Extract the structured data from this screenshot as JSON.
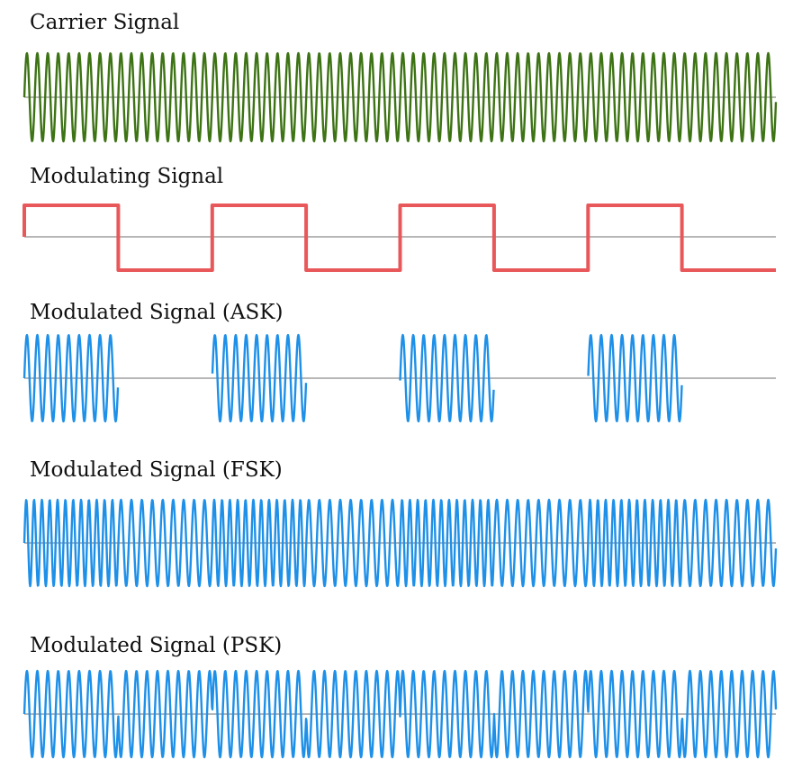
{
  "panels": [
    {
      "title": "Carrier Signal",
      "kind": "carrier",
      "color": "#3d7314"
    },
    {
      "title": "Modulating Signal",
      "kind": "square",
      "color": "#e8585a"
    },
    {
      "title": "Modulated Signal (ASK)",
      "kind": "ask",
      "color": "#1e90e8"
    },
    {
      "title": "Modulated Signal (FSK)",
      "kind": "fsk",
      "color": "#1e90e8"
    },
    {
      "title": "Modulated Signal (PSK)",
      "kind": "psk",
      "color": "#1e90e8"
    }
  ],
  "bits": [
    1,
    0,
    1,
    0,
    1,
    0,
    1,
    0
  ],
  "axis_color": "#8c8c8c"
}
